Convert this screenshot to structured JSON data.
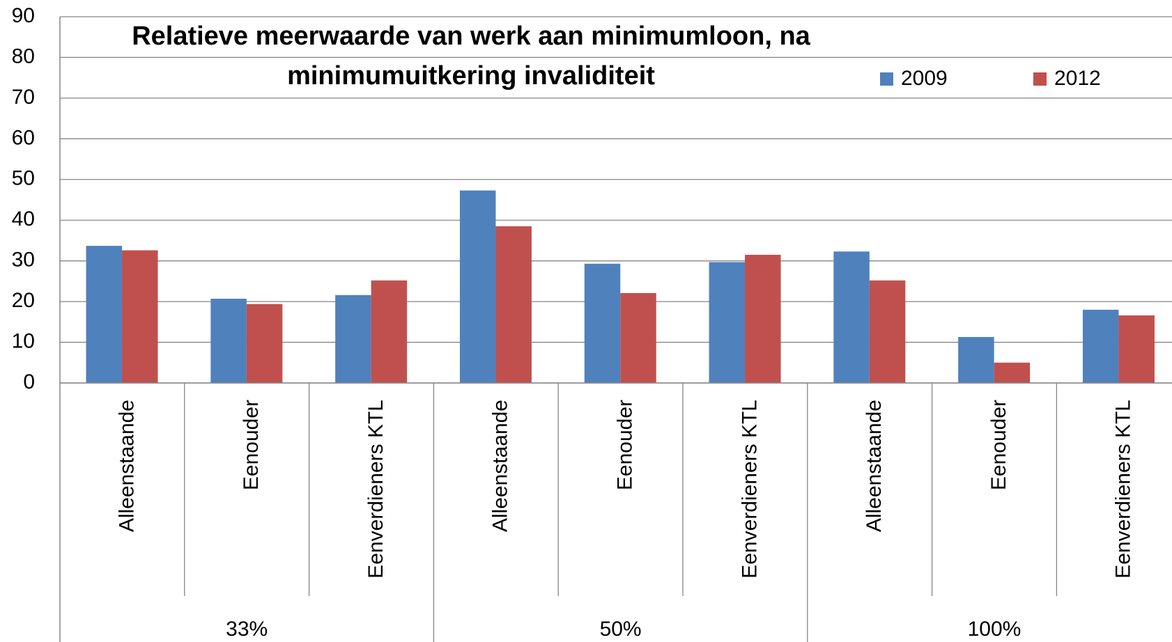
{
  "chart_data": {
    "type": "bar",
    "title": [
      "Relatieve  meerwaarde van werk aan minimumloon, na",
      "minimumuitkering invaliditeit"
    ],
    "categories": [
      "Alleenstaande",
      "Eenouder",
      "Eenverdieners KTL",
      "Alleenstaande",
      "Eenouder",
      "Eenverdieners KTL",
      "Alleenstaande",
      "Eenouder",
      "Eenverdieners KTL"
    ],
    "groups": [
      "33%",
      "50%",
      "100%"
    ],
    "series": [
      {
        "name": "2009",
        "color": "#4f81bd",
        "values": [
          33.7,
          20.7,
          21.6,
          47.3,
          29.3,
          29.7,
          32.3,
          11.3,
          18.0
        ]
      },
      {
        "name": "2012",
        "color": "#c0504d",
        "values": [
          32.6,
          19.4,
          25.2,
          38.5,
          22.1,
          31.5,
          25.2,
          5.0,
          16.6
        ]
      }
    ],
    "ylim": [
      0,
      90
    ],
    "yticks": [
      0,
      10,
      20,
      30,
      40,
      50,
      60,
      70,
      80,
      90
    ],
    "grid": true
  }
}
